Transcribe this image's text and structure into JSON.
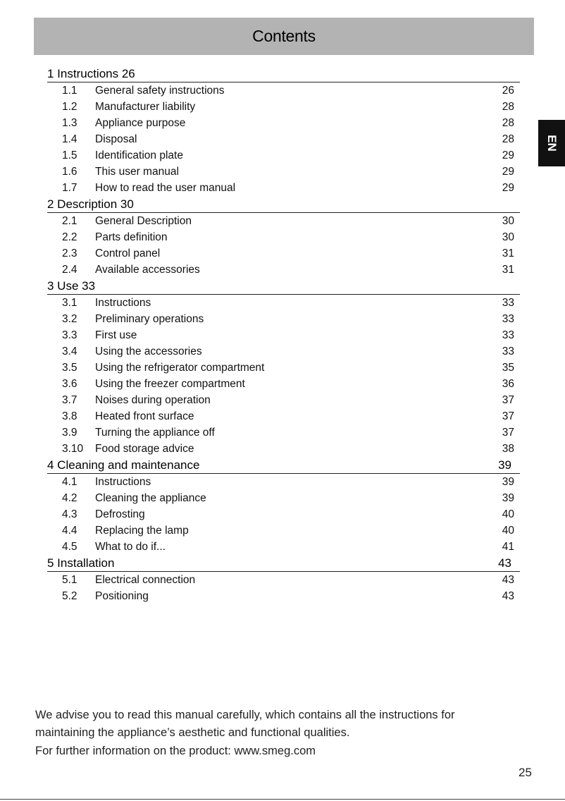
{
  "header": {
    "title": "Contents"
  },
  "language_tab": "EN",
  "sections": [
    {
      "title": "1 Instructions 26",
      "page": "",
      "items": [
        {
          "num": "1.1",
          "title": "General safety instructions",
          "page": "26"
        },
        {
          "num": "1.2",
          "title": "Manufacturer liability",
          "page": "28"
        },
        {
          "num": "1.3",
          "title": "Appliance purpose",
          "page": "28"
        },
        {
          "num": "1.4",
          "title": "Disposal",
          "page": "28"
        },
        {
          "num": "1.5",
          "title": "Identification plate",
          "page": "29"
        },
        {
          "num": "1.6",
          "title": "This user manual",
          "page": "29"
        },
        {
          "num": "1.7",
          "title": "How to read the user manual",
          "page": "29"
        }
      ]
    },
    {
      "title": "2 Description 30",
      "page": "",
      "items": [
        {
          "num": "2.1",
          "title": "General Description",
          "page": "30"
        },
        {
          "num": "2.2",
          "title": "Parts definition",
          "page": "30"
        },
        {
          "num": "2.3",
          "title": "Control panel",
          "page": "31"
        },
        {
          "num": "2.4",
          "title": "Available accessories",
          "page": "31"
        }
      ]
    },
    {
      "title": "3 Use 33",
      "page": "",
      "items": [
        {
          "num": "3.1",
          "title": "Instructions",
          "page": "33"
        },
        {
          "num": "3.2",
          "title": "Preliminary operations",
          "page": "33"
        },
        {
          "num": "3.3",
          "title": "First use",
          "page": "33"
        },
        {
          "num": "3.4",
          "title": "Using the accessories",
          "page": "33"
        },
        {
          "num": "3.5",
          "title": "Using the refrigerator compartment",
          "page": "35"
        },
        {
          "num": "3.6",
          "title": "Using the freezer compartment",
          "page": "36"
        },
        {
          "num": "3.7",
          "title": "Noises during operation",
          "page": "37"
        },
        {
          "num": "3.8",
          "title": "Heated front surface",
          "page": "37"
        },
        {
          "num": "3.9",
          "title": "Turning the appliance off",
          "page": "37"
        },
        {
          "num": "3.10",
          "title": "Food storage advice",
          "page": "38"
        }
      ]
    },
    {
      "title": "4 Cleaning and maintenance",
      "page": "39",
      "items": [
        {
          "num": "4.1",
          "title": "Instructions",
          "page": "39"
        },
        {
          "num": "4.2",
          "title": "Cleaning the appliance",
          "page": "39"
        },
        {
          "num": "4.3",
          "title": "Defrosting",
          "page": "40"
        },
        {
          "num": "4.4",
          "title": "Replacing the lamp",
          "page": "40"
        },
        {
          "num": "4.5",
          "title": "What to do if...",
          "page": "41"
        }
      ]
    },
    {
      "title": "5 Installation",
      "page": "43",
      "items": [
        {
          "num": "5.1",
          "title": "Electrical connection",
          "page": "43"
        },
        {
          "num": "5.2",
          "title": "Positioning",
          "page": "43"
        }
      ]
    }
  ],
  "footer": {
    "line1": "We advise you to read this manual carefully, which contains all the instructions for",
    "line2": "maintaining the appliance’s aesthetic and functional qualities.",
    "line3": "For further information on the product: www.smeg.com"
  },
  "page_number": "25"
}
